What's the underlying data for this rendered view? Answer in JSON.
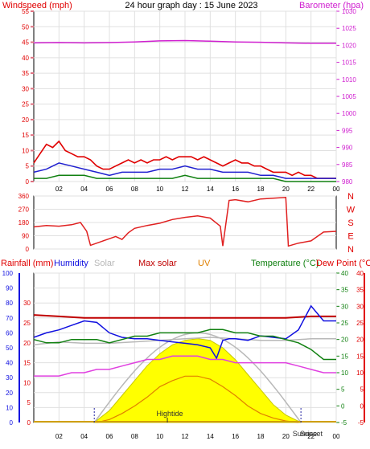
{
  "title": "24 hour graph day : 15 June 2023",
  "colors": {
    "wind": "#e00000",
    "gust_avg": "#2020d0",
    "wind_avg": "#108010",
    "barometer": "#d020d0",
    "direction": "#e02020",
    "rain": "#3030e0",
    "humidity": "#1010e0",
    "solar": "#b8b8b8",
    "max_solar": "#c00000",
    "uv": "#e08000",
    "temperature": "#108010",
    "dew_point": "#e00000",
    "solar_fill": "#ffff00",
    "axis_pink": "#e07080",
    "grid": "#e0e0e0"
  },
  "chart_data": [
    {
      "type": "line",
      "panel": "wind-barometer",
      "left_axis_label": "Windspeed (mph)",
      "right_axis_label": "Barometer (hpa)",
      "left_ylim": [
        0,
        55
      ],
      "left_ticks": [
        0,
        5,
        10,
        15,
        20,
        25,
        30,
        35,
        40,
        45,
        50,
        55
      ],
      "right_ylim": [
        980,
        1030
      ],
      "right_ticks": [
        980,
        985,
        990,
        995,
        1000,
        1005,
        1010,
        1015,
        1020,
        1025,
        1030
      ],
      "x_ticks": [
        "02",
        "04",
        "06",
        "08",
        "10",
        "12",
        "14",
        "16",
        "18",
        "20",
        "22",
        "00"
      ],
      "series": [
        {
          "series_key": "wind",
          "axis": "left",
          "x": [
            0,
            0.5,
            1,
            1.5,
            2,
            2.5,
            3,
            3.5,
            4,
            4.5,
            5,
            5.5,
            6,
            6.5,
            7,
            7.5,
            8,
            8.5,
            9,
            9.5,
            10,
            10.5,
            11,
            11.5,
            12,
            12.5,
            13,
            13.5,
            14,
            14.5,
            15,
            15.5,
            16,
            16.5,
            17,
            17.5,
            18,
            18.5,
            19,
            19.5,
            20,
            20.5,
            21,
            21.5,
            22,
            22.5,
            23,
            23.5,
            24
          ],
          "values": [
            6,
            9,
            12,
            11,
            13,
            10,
            9,
            8,
            8,
            7,
            5,
            4,
            4,
            5,
            6,
            7,
            6,
            7,
            6,
            7,
            7,
            8,
            7,
            8,
            8,
            8,
            7,
            8,
            7,
            6,
            5,
            6,
            7,
            6,
            6,
            5,
            5,
            4,
            3,
            3,
            3,
            2,
            3,
            2,
            2,
            1,
            1,
            1,
            1
          ]
        },
        {
          "series_key": "gust_avg",
          "axis": "left",
          "x": [
            0,
            1,
            2,
            3,
            4,
            5,
            6,
            7,
            8,
            9,
            10,
            11,
            12,
            13,
            14,
            15,
            16,
            17,
            18,
            19,
            20,
            21,
            22,
            23,
            24
          ],
          "values": [
            3,
            4,
            6,
            5,
            4,
            3,
            2,
            3,
            3,
            3,
            4,
            4,
            5,
            4,
            4,
            3,
            3,
            3,
            2,
            2,
            1,
            1,
            1,
            1,
            1
          ]
        },
        {
          "series_key": "wind_avg",
          "axis": "left",
          "x": [
            0,
            1,
            2,
            3,
            4,
            5,
            6,
            7,
            8,
            9,
            10,
            11,
            12,
            13,
            14,
            15,
            16,
            17,
            18,
            19,
            20,
            21,
            22,
            23,
            24
          ],
          "values": [
            1,
            1,
            2,
            2,
            2,
            1,
            1,
            1,
            1,
            1,
            1,
            1,
            2,
            1,
            1,
            1,
            1,
            1,
            1,
            1,
            0,
            0,
            0,
            0,
            0
          ]
        },
        {
          "series_key": "barometer",
          "axis": "right",
          "x": [
            0,
            2,
            4,
            6,
            8,
            10,
            12,
            14,
            16,
            18,
            20,
            22,
            24
          ],
          "values": [
            1020.7,
            1020.8,
            1020.7,
            1020.8,
            1021,
            1021.3,
            1021.4,
            1021.2,
            1021,
            1020.9,
            1020.7,
            1020.6,
            1020.6
          ]
        }
      ]
    },
    {
      "type": "line",
      "panel": "wind-direction",
      "left_ylim": [
        0,
        360
      ],
      "left_ticks": [
        0,
        90,
        180,
        270,
        360
      ],
      "right_labels": [
        "N",
        "W",
        "S",
        "E",
        "N"
      ],
      "series": [
        {
          "series_key": "direction",
          "axis": "left",
          "x": [
            0,
            1,
            2,
            3,
            3.7,
            4.2,
            4.5,
            5,
            6,
            6.5,
            7,
            7.5,
            8,
            9,
            10,
            11,
            12,
            13,
            14,
            14.8,
            15,
            15.5,
            16,
            17,
            18,
            19,
            20,
            20.2,
            21,
            22,
            23,
            24
          ],
          "values": [
            150,
            160,
            155,
            165,
            180,
            120,
            25,
            40,
            70,
            85,
            65,
            110,
            140,
            160,
            175,
            200,
            215,
            225,
            210,
            155,
            20,
            330,
            335,
            320,
            340,
            345,
            350,
            20,
            40,
            55,
            115,
            120
          ]
        }
      ]
    },
    {
      "type": "area",
      "panel": "temperature-humidity-solar",
      "legend": [
        "Rainfall (mm)",
        "Humidity",
        "Solar",
        "Max solar",
        "UV",
        "Temperature (°C)",
        "Dew Point (°C)"
      ],
      "left_ylim": [
        0,
        100
      ],
      "left_ticks": [
        0,
        10,
        20,
        30,
        40,
        50,
        60,
        70,
        80,
        90,
        100
      ],
      "rain_ticks": [
        0,
        5,
        10,
        15,
        20,
        25,
        30
      ],
      "temp_ylim": [
        -5,
        40
      ],
      "temp_ticks": [
        -5,
        0,
        5,
        10,
        15,
        20,
        25,
        30,
        35,
        40
      ],
      "annotations": [
        "Hightide",
        "Sunrise",
        "Sunset"
      ],
      "series": [
        {
          "series_key": "rain",
          "axis": "rain",
          "x": [
            0,
            24
          ],
          "values": [
            0,
            0
          ]
        },
        {
          "series_key": "humidity",
          "axis": "left",
          "x": [
            0,
            1,
            2,
            3,
            4,
            5,
            6,
            7,
            8,
            9,
            10,
            11,
            12,
            13,
            14,
            14.5,
            15,
            15.5,
            16,
            17,
            18,
            19,
            20,
            21,
            22,
            23,
            24
          ],
          "values": [
            57,
            60,
            62,
            65,
            68,
            67,
            60,
            57,
            56,
            56,
            55,
            54,
            53,
            52,
            50,
            43,
            55,
            56,
            56,
            55,
            58,
            57,
            56,
            62,
            78,
            68,
            68
          ]
        },
        {
          "series_key": "solar",
          "axis": "left",
          "x": [
            0,
            2,
            4,
            6,
            8,
            10,
            12,
            14,
            16,
            18,
            20,
            22,
            24
          ],
          "values": [
            52,
            54,
            53,
            53,
            54,
            55,
            56,
            57,
            56,
            55,
            55,
            56,
            56
          ]
        },
        {
          "series_key": "max_solar",
          "axis": "left",
          "x": [
            0,
            2,
            4,
            6,
            8,
            10,
            12,
            14,
            16,
            18,
            20,
            22,
            24
          ],
          "values": [
            72,
            71,
            70,
            70,
            70,
            70,
            70,
            70,
            70,
            70,
            70,
            71,
            71
          ]
        },
        {
          "series_key": "temperature",
          "axis": "temp",
          "x": [
            0,
            1,
            2,
            3,
            4,
            5,
            6,
            7,
            8,
            9,
            10,
            11,
            12,
            13,
            14,
            15,
            16,
            17,
            18,
            19,
            20,
            21,
            22,
            23,
            24
          ],
          "values": [
            20,
            19,
            19,
            20,
            20,
            20,
            19,
            20,
            21,
            21,
            22,
            22,
            22,
            22,
            23,
            23,
            22,
            22,
            21,
            21,
            20,
            19,
            17,
            14,
            14
          ]
        },
        {
          "series_key": "dew_point",
          "axis": "temp",
          "x": [
            0,
            1,
            2,
            3,
            4,
            5,
            6,
            7,
            8,
            9,
            10,
            11,
            12,
            13,
            14,
            15,
            16,
            17,
            18,
            19,
            20,
            21,
            22,
            23,
            24
          ],
          "values": [
            9,
            9,
            9,
            10,
            10,
            11,
            11,
            12,
            13,
            14,
            14,
            15,
            15,
            15,
            14,
            14,
            13,
            13,
            13,
            13,
            13,
            12,
            11,
            10,
            10
          ]
        },
        {
          "series_key": "solar_fill",
          "axis": "left",
          "x": [
            4.8,
            6,
            7,
            8,
            9,
            10,
            11,
            12,
            13,
            14,
            15,
            16,
            17,
            18,
            19,
            20,
            21.2
          ],
          "values": [
            0,
            8,
            18,
            28,
            38,
            46,
            52,
            55,
            56,
            55,
            50,
            42,
            32,
            22,
            12,
            5,
            0
          ]
        },
        {
          "series_key": "uv",
          "axis": "left",
          "x": [
            5,
            6,
            7,
            8,
            9,
            10,
            11,
            12,
            13,
            14,
            15,
            16,
            17,
            18,
            19,
            20,
            21
          ],
          "values": [
            0,
            2,
            6,
            11,
            17,
            24,
            28,
            31,
            31,
            29,
            24,
            18,
            11,
            6,
            3,
            1,
            0
          ]
        }
      ]
    }
  ]
}
